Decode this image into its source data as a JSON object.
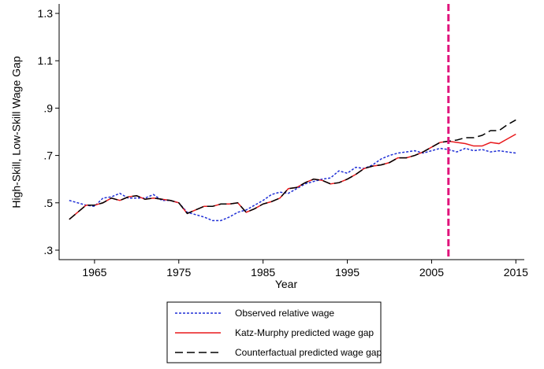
{
  "chart_data": {
    "type": "line",
    "x_label": "Year",
    "y_label": "High-Skill, Low-Skill Wage Gap",
    "x": [
      1962,
      1963,
      1964,
      1965,
      1966,
      1967,
      1968,
      1969,
      1970,
      1971,
      1972,
      1973,
      1974,
      1975,
      1976,
      1977,
      1978,
      1979,
      1980,
      1981,
      1982,
      1983,
      1984,
      1985,
      1986,
      1987,
      1988,
      1989,
      1990,
      1991,
      1992,
      1993,
      1994,
      1995,
      1996,
      1997,
      1998,
      1999,
      2000,
      2001,
      2002,
      2003,
      2004,
      2005,
      2006,
      2007,
      2008,
      2009,
      2010,
      2011,
      2012,
      2013,
      2014,
      2015
    ],
    "series": [
      {
        "name": "Observed relative wage",
        "color": "#1f2fd6",
        "dash": "3,2",
        "values": [
          0.51,
          0.5,
          0.49,
          0.485,
          0.52,
          0.525,
          0.54,
          0.52,
          0.52,
          0.52,
          0.535,
          0.51,
          0.51,
          0.5,
          0.46,
          0.45,
          0.44,
          0.425,
          0.425,
          0.44,
          0.46,
          0.47,
          0.49,
          0.51,
          0.535,
          0.545,
          0.54,
          0.56,
          0.58,
          0.59,
          0.6,
          0.605,
          0.635,
          0.625,
          0.65,
          0.645,
          0.66,
          0.685,
          0.7,
          0.71,
          0.715,
          0.72,
          0.71,
          0.72,
          0.73,
          0.725,
          0.715,
          0.73,
          0.72,
          0.725,
          0.715,
          0.72,
          0.715,
          0.71
        ]
      },
      {
        "name": "Katz-Murphy predicted wage gap",
        "color": "#e8191c",
        "dash": "none",
        "values": [
          0.43,
          0.46,
          0.49,
          0.49,
          0.5,
          0.52,
          0.51,
          0.525,
          0.53,
          0.515,
          0.52,
          0.515,
          0.51,
          0.5,
          0.455,
          0.47,
          0.485,
          0.485,
          0.495,
          0.495,
          0.5,
          0.46,
          0.475,
          0.495,
          0.505,
          0.52,
          0.56,
          0.565,
          0.585,
          0.6,
          0.595,
          0.58,
          0.585,
          0.6,
          0.62,
          0.645,
          0.655,
          0.66,
          0.67,
          0.69,
          0.69,
          0.7,
          0.715,
          0.735,
          0.755,
          0.76,
          0.755,
          0.75,
          0.74,
          0.74,
          0.755,
          0.75,
          0.77,
          0.79
        ]
      },
      {
        "name": "Counterfactual predicted wage gap",
        "color": "#000000",
        "dash": "10,5",
        "values": [
          0.43,
          0.46,
          0.49,
          0.49,
          0.5,
          0.52,
          0.51,
          0.525,
          0.53,
          0.515,
          0.52,
          0.515,
          0.51,
          0.5,
          0.455,
          0.47,
          0.485,
          0.485,
          0.495,
          0.495,
          0.5,
          0.46,
          0.475,
          0.495,
          0.505,
          0.52,
          0.56,
          0.565,
          0.585,
          0.6,
          0.595,
          0.58,
          0.585,
          0.6,
          0.62,
          0.645,
          0.655,
          0.66,
          0.67,
          0.69,
          0.69,
          0.7,
          0.715,
          0.735,
          0.755,
          0.76,
          0.765,
          0.775,
          0.775,
          0.785,
          0.805,
          0.805,
          0.83,
          0.85
        ]
      }
    ],
    "xlim": [
      1960.8,
      2016
    ],
    "ylim": [
      0.26,
      1.34
    ],
    "xticks": [
      1965,
      1975,
      1985,
      1995,
      2005,
      2015
    ],
    "yticks": [
      {
        "value": 0.3,
        "label": ".3"
      },
      {
        "value": 0.5,
        "label": ".5"
      },
      {
        "value": 0.7,
        "label": ".7"
      },
      {
        "value": 0.9,
        "label": ".9"
      },
      1.1,
      1.3
    ],
    "vline": {
      "x": 2007,
      "color": "#e0147c"
    },
    "legend": "bottom"
  }
}
